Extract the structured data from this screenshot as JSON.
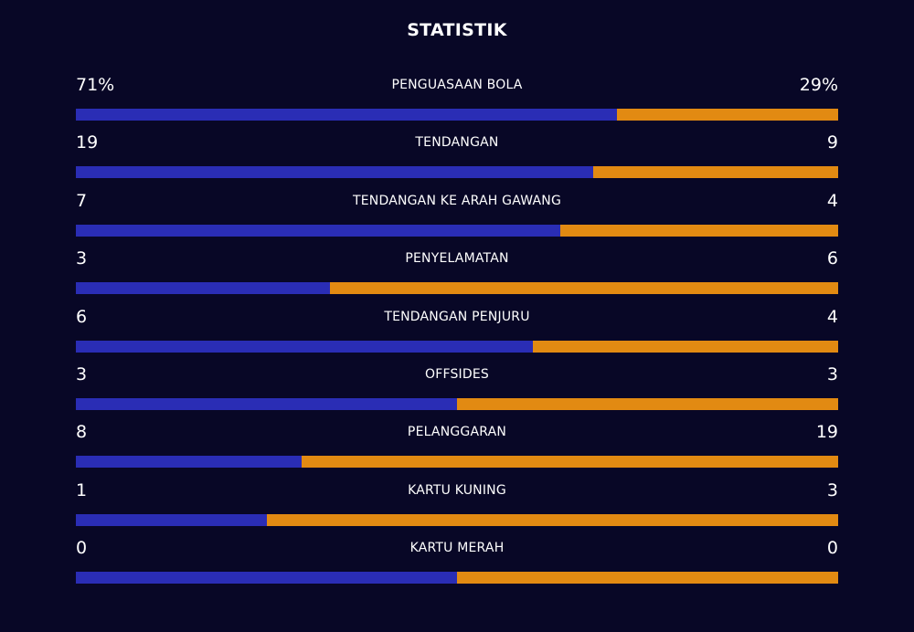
{
  "title": "STATISTIK",
  "colors": {
    "background": "#080726",
    "home": "#2a2db5",
    "away": "#e28a12"
  },
  "stats": [
    {
      "label": "PENGUASAAN BOLA",
      "home": "71%",
      "away": "29%",
      "home_share": 0.71
    },
    {
      "label": "TENDANGAN",
      "home": "19",
      "away": "9",
      "home_share": 0.679
    },
    {
      "label": "TENDANGAN KE ARAH GAWANG",
      "home": "7",
      "away": "4",
      "home_share": 0.636
    },
    {
      "label": "PENYELAMATAN",
      "home": "3",
      "away": "6",
      "home_share": 0.333
    },
    {
      "label": "TENDANGAN PENJURU",
      "home": "6",
      "away": "4",
      "home_share": 0.6
    },
    {
      "label": "OFFSIDES",
      "home": "3",
      "away": "3",
      "home_share": 0.5
    },
    {
      "label": "PELANGGARAN",
      "home": "8",
      "away": "19",
      "home_share": 0.296
    },
    {
      "label": "KARTU KUNING",
      "home": "1",
      "away": "3",
      "home_share": 0.25
    },
    {
      "label": "KARTU MERAH",
      "home": "0",
      "away": "0",
      "home_share": 0.5
    }
  ]
}
